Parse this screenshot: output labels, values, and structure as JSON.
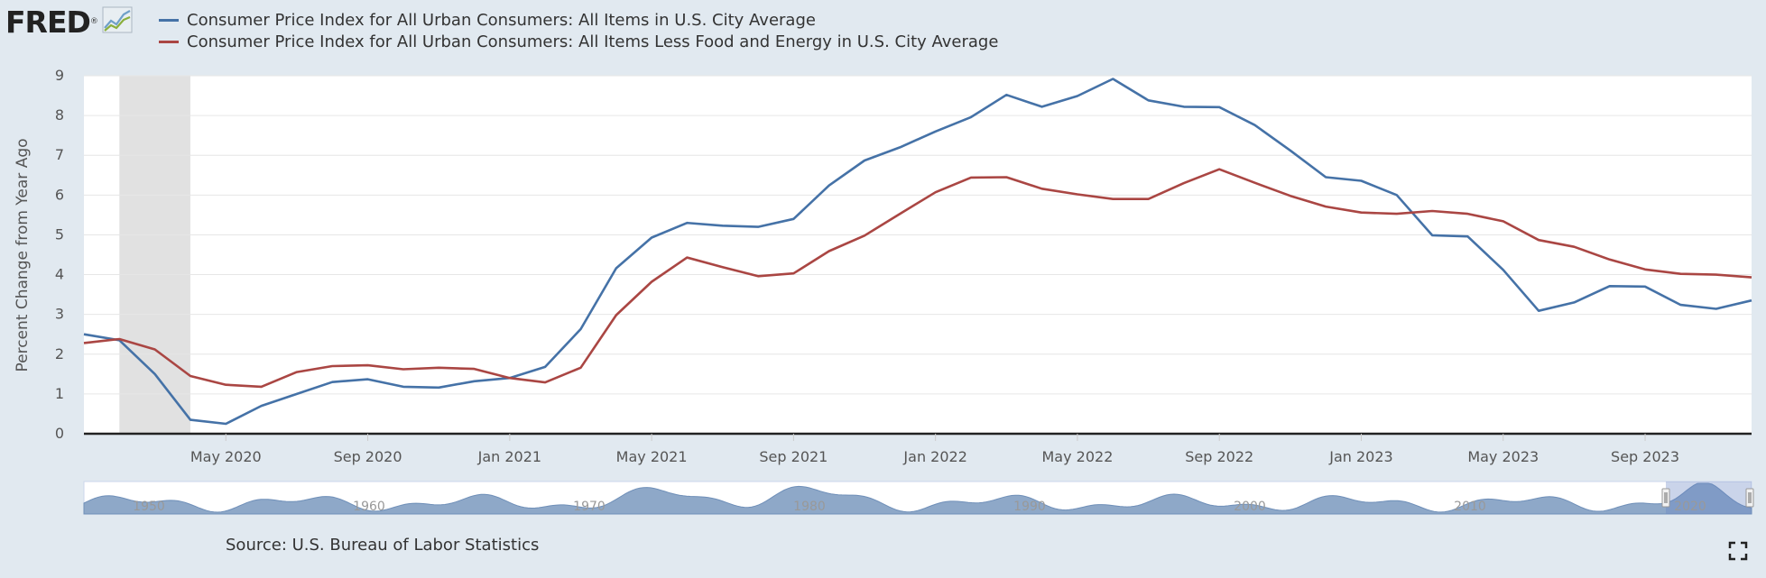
{
  "header": {
    "logo_text": "FRED",
    "logo_reg": "®",
    "logo_icon": "fred-chart-icon"
  },
  "chart_data": {
    "type": "line",
    "ylabel": "Percent Change from Year Ago",
    "ylim": [
      0,
      9
    ],
    "yticks": [
      0,
      1,
      2,
      3,
      4,
      5,
      6,
      7,
      8,
      9
    ],
    "grid": true,
    "legend_position": "top-left",
    "recession_shading": {
      "start": "2020-02",
      "end": "2020-04"
    },
    "x": [
      "2020-01",
      "2020-02",
      "2020-03",
      "2020-04",
      "2020-05",
      "2020-06",
      "2020-07",
      "2020-08",
      "2020-09",
      "2020-10",
      "2020-11",
      "2020-12",
      "2021-01",
      "2021-02",
      "2021-03",
      "2021-04",
      "2021-05",
      "2021-06",
      "2021-07",
      "2021-08",
      "2021-09",
      "2021-10",
      "2021-11",
      "2021-12",
      "2022-01",
      "2022-02",
      "2022-03",
      "2022-04",
      "2022-05",
      "2022-06",
      "2022-07",
      "2022-08",
      "2022-09",
      "2022-10",
      "2022-11",
      "2022-12",
      "2023-01",
      "2023-02",
      "2023-03",
      "2023-04",
      "2023-05",
      "2023-06",
      "2023-07",
      "2023-08",
      "2023-09",
      "2023-10",
      "2023-11",
      "2023-12"
    ],
    "xticks": [
      {
        "label": "May 2020",
        "index": 4
      },
      {
        "label": "Sep 2020",
        "index": 8
      },
      {
        "label": "Jan 2021",
        "index": 12
      },
      {
        "label": "May 2021",
        "index": 16
      },
      {
        "label": "Sep 2021",
        "index": 20
      },
      {
        "label": "Jan 2022",
        "index": 24
      },
      {
        "label": "May 2022",
        "index": 28
      },
      {
        "label": "Sep 2022",
        "index": 32
      },
      {
        "label": "Jan 2023",
        "index": 36
      },
      {
        "label": "May 2023",
        "index": 40
      },
      {
        "label": "Sep 2023",
        "index": 44
      }
    ],
    "series": [
      {
        "name": "Consumer Price Index for All Urban Consumers: All Items in U.S. City Average",
        "color": "#4572a7",
        "values": [
          2.5,
          2.35,
          1.5,
          0.35,
          0.25,
          0.7,
          1.0,
          1.3,
          1.37,
          1.18,
          1.16,
          1.32,
          1.4,
          1.68,
          2.63,
          4.16,
          4.93,
          5.3,
          5.23,
          5.2,
          5.4,
          6.24,
          6.87,
          7.2,
          7.6,
          7.96,
          8.52,
          8.22,
          8.49,
          8.92,
          8.38,
          8.22,
          8.21,
          7.76,
          7.12,
          6.45,
          6.36,
          6.0,
          4.99,
          4.96,
          4.12,
          3.09,
          3.3,
          3.71,
          3.7,
          3.24,
          3.14,
          3.35
        ]
      },
      {
        "name": "Consumer Price Index for All Urban Consumers: All Items Less Food and Energy in U.S. City Average",
        "color": "#aa4643",
        "values": [
          2.28,
          2.38,
          2.12,
          1.45,
          1.23,
          1.18,
          1.55,
          1.7,
          1.72,
          1.62,
          1.66,
          1.63,
          1.4,
          1.29,
          1.66,
          2.98,
          3.82,
          4.43,
          4.19,
          3.96,
          4.03,
          4.59,
          4.98,
          5.53,
          6.07,
          6.44,
          6.45,
          6.16,
          6.02,
          5.9,
          5.9,
          6.3,
          6.65,
          6.31,
          5.98,
          5.71,
          5.56,
          5.53,
          5.6,
          5.53,
          5.34,
          4.87,
          4.7,
          4.38,
          4.13,
          4.02,
          4.0,
          3.93
        ]
      }
    ]
  },
  "navigator": {
    "labels": [
      "1950",
      "1960",
      "1970",
      "1980",
      "1990",
      "2000",
      "2010",
      "2020"
    ]
  },
  "footer": {
    "source": "Source: U.S. Bureau of Labor Statistics",
    "fullscreen_icon": "fullscreen-icon"
  }
}
